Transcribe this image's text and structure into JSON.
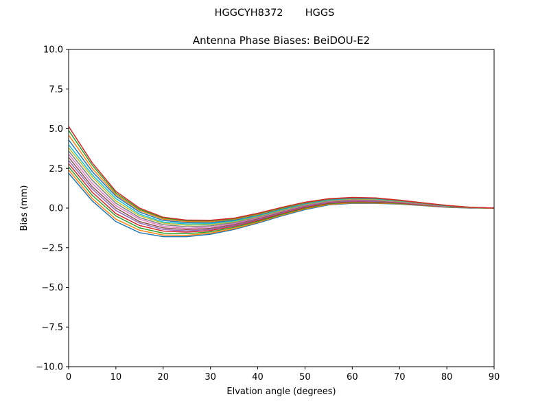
{
  "figure": {
    "suptitle": "HGGCYH8372       HGGS"
  },
  "chart_data": {
    "type": "line",
    "title": "Antenna Phase Biases: BeiDOU-E2",
    "xlabel": "Elvation angle (degrees)",
    "ylabel": "Bias (mm)",
    "xlim": [
      0,
      90
    ],
    "ylim": [
      -10,
      10
    ],
    "xticks": [
      0,
      10,
      20,
      30,
      40,
      50,
      60,
      70,
      80,
      90
    ],
    "yticks": [
      -10.0,
      -7.5,
      -5.0,
      -2.5,
      0.0,
      2.5,
      5.0,
      7.5,
      10.0
    ],
    "xtick_labels": [
      "0",
      "10",
      "20",
      "30",
      "40",
      "50",
      "60",
      "70",
      "80",
      "90"
    ],
    "ytick_labels": [
      "−10.0",
      "−7.5",
      "−5.0",
      "−2.5",
      "0.0",
      "2.5",
      "5.0",
      "7.5",
      "10.0"
    ],
    "grid": false,
    "legend": "none",
    "x": [
      0,
      5,
      10,
      15,
      20,
      25,
      30,
      35,
      40,
      45,
      50,
      55,
      60,
      65,
      70,
      75,
      80,
      85,
      90
    ],
    "series": [
      {
        "values": [
          2.2,
          0.45,
          -0.85,
          -1.55,
          -1.8,
          -1.8,
          -1.65,
          -1.35,
          -0.95,
          -0.5,
          -0.1,
          0.2,
          0.3,
          0.3,
          0.25,
          0.15,
          0.05,
          0.0,
          0.0
        ]
      },
      {
        "values": [
          2.4,
          0.6,
          -0.7,
          -1.4,
          -1.7,
          -1.72,
          -1.58,
          -1.3,
          -0.9,
          -0.45,
          -0.05,
          0.23,
          0.33,
          0.32,
          0.27,
          0.17,
          0.06,
          0.01,
          0.0
        ]
      },
      {
        "values": [
          2.6,
          0.8,
          -0.5,
          -1.25,
          -1.58,
          -1.62,
          -1.5,
          -1.22,
          -0.84,
          -0.4,
          0.0,
          0.27,
          0.37,
          0.35,
          0.29,
          0.19,
          0.07,
          0.01,
          0.0
        ]
      },
      {
        "values": [
          2.8,
          1.0,
          -0.35,
          -1.1,
          -1.45,
          -1.52,
          -1.42,
          -1.15,
          -0.78,
          -0.35,
          0.05,
          0.31,
          0.41,
          0.39,
          0.32,
          0.2,
          0.08,
          0.02,
          0.0
        ]
      },
      {
        "values": [
          3.0,
          1.2,
          -0.15,
          -0.95,
          -1.35,
          -1.44,
          -1.35,
          -1.1,
          -0.72,
          -0.3,
          0.1,
          0.35,
          0.45,
          0.43,
          0.35,
          0.22,
          0.09,
          0.02,
          0.0
        ]
      },
      {
        "values": [
          3.2,
          1.35,
          0.0,
          -0.85,
          -1.25,
          -1.36,
          -1.28,
          -1.04,
          -0.67,
          -0.26,
          0.14,
          0.39,
          0.49,
          0.46,
          0.37,
          0.24,
          0.1,
          0.02,
          0.0
        ]
      },
      {
        "values": [
          3.4,
          1.55,
          0.15,
          -0.7,
          -1.15,
          -1.28,
          -1.2,
          -0.98,
          -0.62,
          -0.22,
          0.17,
          0.42,
          0.52,
          0.49,
          0.39,
          0.25,
          0.11,
          0.03,
          0.0
        ]
      },
      {
        "values": [
          3.6,
          1.75,
          0.3,
          -0.6,
          -1.05,
          -1.18,
          -1.12,
          -0.92,
          -0.57,
          -0.18,
          0.2,
          0.45,
          0.55,
          0.52,
          0.41,
          0.27,
          0.12,
          0.03,
          0.0
        ]
      },
      {
        "values": [
          3.8,
          1.95,
          0.45,
          -0.48,
          -0.95,
          -1.08,
          -1.04,
          -0.86,
          -0.52,
          -0.14,
          0.24,
          0.48,
          0.58,
          0.55,
          0.43,
          0.28,
          0.13,
          0.03,
          0.0
        ]
      },
      {
        "values": [
          4.0,
          2.1,
          0.6,
          -0.38,
          -0.88,
          -1.0,
          -0.98,
          -0.81,
          -0.48,
          -0.1,
          0.27,
          0.51,
          0.61,
          0.58,
          0.45,
          0.29,
          0.14,
          0.04,
          0.0
        ]
      },
      {
        "values": [
          4.3,
          2.3,
          0.75,
          -0.25,
          -0.78,
          -0.92,
          -0.91,
          -0.76,
          -0.44,
          -0.06,
          0.3,
          0.54,
          0.63,
          0.6,
          0.47,
          0.3,
          0.15,
          0.04,
          0.0
        ]
      },
      {
        "values": [
          4.6,
          2.5,
          0.85,
          -0.15,
          -0.7,
          -0.85,
          -0.85,
          -0.71,
          -0.4,
          -0.02,
          0.33,
          0.57,
          0.65,
          0.62,
          0.48,
          0.31,
          0.16,
          0.04,
          0.0
        ]
      },
      {
        "values": [
          4.9,
          2.7,
          0.95,
          -0.08,
          -0.63,
          -0.8,
          -0.8,
          -0.67,
          -0.36,
          0.01,
          0.35,
          0.58,
          0.66,
          0.63,
          0.49,
          0.32,
          0.16,
          0.05,
          0.0
        ]
      },
      {
        "values": [
          5.15,
          2.85,
          1.05,
          0.0,
          -0.58,
          -0.76,
          -0.77,
          -0.64,
          -0.33,
          0.04,
          0.37,
          0.59,
          0.67,
          0.64,
          0.5,
          0.33,
          0.17,
          0.05,
          0.0
        ]
      }
    ],
    "colors": [
      "#1f77b4",
      "#ff7f0e",
      "#2ca02c",
      "#d62728",
      "#9467bd",
      "#8c564b",
      "#e377c2",
      "#7f7f7f",
      "#bcbd22",
      "#17becf"
    ]
  }
}
